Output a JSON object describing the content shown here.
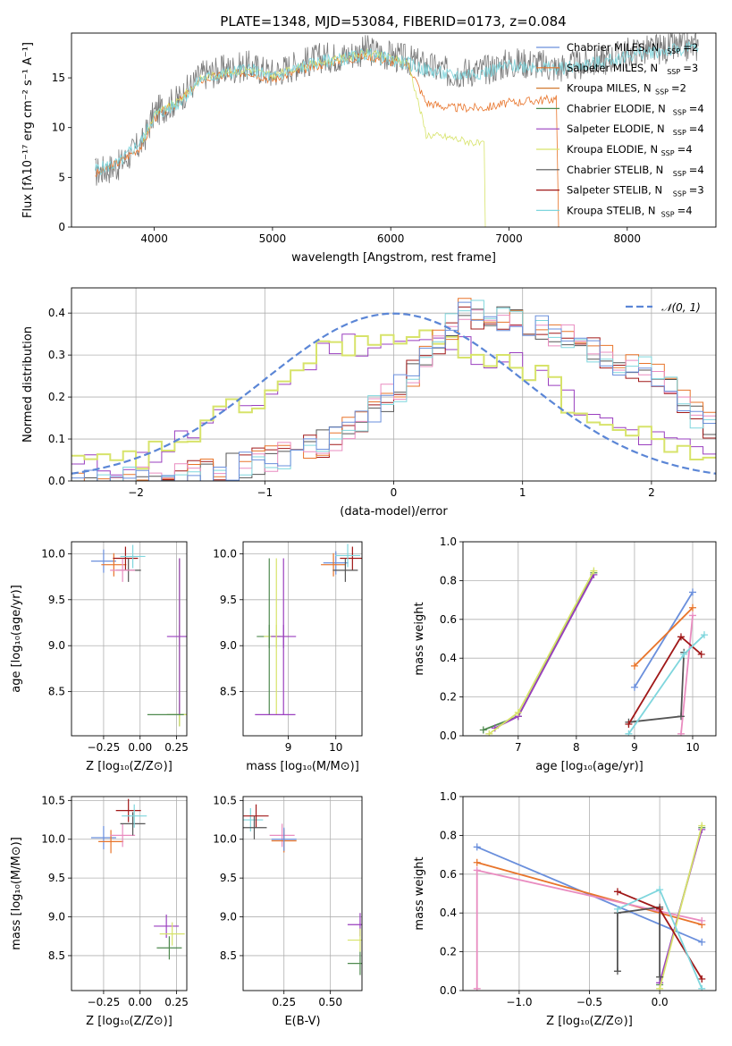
{
  "title": "PLATE=1348, MJD=53084, FIBERID=0173, z=0.084",
  "colors": {
    "Chabrier MILES": "#6a8fdc",
    "Salpeter MILES": "#e8742a",
    "Kroupa MILES": "#d27a30",
    "Chabrier ELODIE": "#4f8a4f",
    "Salpeter ELODIE": "#9a3fbf",
    "Kroupa ELODIE": "#d7e36a",
    "Chabrier STELIB": "#555555",
    "Salpeter STELIB": "#a01818",
    "Kroupa STELIB": "#7fd6dd",
    "extra": "#e98cc0",
    "gaussian": "#5b86d6"
  },
  "chart_data": [
    {
      "type": "line",
      "panel": "spectrum",
      "title": "PLATE=1348, MJD=53084, FIBERID=0173, z=0.084",
      "xlabel": "wavelength [Angstrom, rest frame]",
      "ylabel": "Flux [fλ10⁻¹⁷ erg cm⁻² s⁻¹ A⁻¹]",
      "xlim": [
        3300,
        8750
      ],
      "ylim": [
        0,
        19.5
      ],
      "xticks": [
        "4000",
        "5000",
        "6000",
        "7000",
        "8000"
      ],
      "yticks": [
        "0",
        "5",
        "10",
        "15"
      ],
      "legend": [
        {
          "label": "Chabrier MILES, N",
          "sub": "SSP",
          "tail": "=2"
        },
        {
          "label": "Salpeter MILES, N",
          "sub": "SSP",
          "tail": "=3"
        },
        {
          "label": "Kroupa MILES, N",
          "sub": "SSP",
          "tail": "=2"
        },
        {
          "label": "Chabrier ELODIE, N",
          "sub": "SSP",
          "tail": "=4"
        },
        {
          "label": "Salpeter ELODIE, N",
          "sub": "SSP",
          "tail": "=4"
        },
        {
          "label": "Kroupa ELODIE, N",
          "sub": "SSP",
          "tail": "=4"
        },
        {
          "label": "Chabrier STELIB, N",
          "sub": "SSP",
          "tail": "=4"
        },
        {
          "label": "Salpeter STELIB, N",
          "sub": "SSP",
          "tail": "=3"
        },
        {
          "label": "Kroupa STELIB, N",
          "sub": "SSP",
          "tail": "=4"
        }
      ],
      "legend_position": "upper right",
      "series": [
        {
          "name": "data",
          "x": [
            3500,
            3700,
            3900,
            4000,
            4200,
            4400,
            4600,
            4800,
            5000,
            5200,
            5400,
            5600,
            5800,
            6000,
            6150,
            6300,
            6500,
            6800,
            7000,
            7200,
            7400,
            7600,
            7800,
            8000,
            8200,
            8400,
            8600
          ],
          "y": [
            5.5,
            6.2,
            8.5,
            11.5,
            12.8,
            15.3,
            15.8,
            16.2,
            15.5,
            16.3,
            17.0,
            17.2,
            17.8,
            17.2,
            16.8,
            16.2,
            15.5,
            15.8,
            16.5,
            16.5,
            16.0,
            16.3,
            16.8,
            17.5,
            17.8,
            18.0,
            18.2
          ]
        },
        {
          "name": "MILES",
          "x": [
            3500,
            3700,
            3900,
            4000,
            4200,
            4400,
            4600,
            4800,
            5000,
            5200,
            5400,
            5600,
            5800,
            6000,
            6150,
            6300,
            6500,
            6800,
            7000,
            7200,
            7300,
            7400,
            7420
          ],
          "y": [
            5.3,
            6.5,
            8.2,
            11.0,
            12.5,
            14.8,
            15.3,
            15.6,
            14.8,
            15.6,
            16.3,
            16.8,
            17.2,
            16.6,
            16.3,
            12.5,
            12.0,
            12.0,
            12.5,
            12.7,
            12.8,
            12.9,
            0
          ]
        },
        {
          "name": "ELODIE",
          "x": [
            3900,
            4000,
            4200,
            4400,
            4600,
            4800,
            5000,
            5200,
            5400,
            5600,
            5800,
            6000,
            6150,
            6300,
            6500,
            6700,
            6800,
            6800
          ],
          "y": [
            8.5,
            11.3,
            12.6,
            15.0,
            15.5,
            15.9,
            15.2,
            16.0,
            16.5,
            17.0,
            17.5,
            17.0,
            16.5,
            9.3,
            9.0,
            8.5,
            8.2,
            0
          ]
        },
        {
          "name": "STELIB",
          "x": [
            3500,
            3700,
            3900,
            4000,
            4200,
            4400,
            4600,
            4800,
            5000,
            5200,
            5400,
            5600,
            5800,
            6000,
            6150,
            6300,
            6500,
            6800,
            7000,
            7200,
            7400,
            7600,
            7800,
            8000,
            8200,
            8400,
            8600
          ],
          "y": [
            5.8,
            6.4,
            8.8,
            11.2,
            12.4,
            14.9,
            15.4,
            15.9,
            15.0,
            15.9,
            16.6,
            16.9,
            17.4,
            16.8,
            16.4,
            15.8,
            15.2,
            15.6,
            16.2,
            16.2,
            15.9,
            16.2,
            16.6,
            17.2,
            17.6,
            17.8,
            18.0
          ]
        }
      ]
    },
    {
      "type": "line",
      "panel": "residuals",
      "xlabel": "(data-model)/error",
      "ylabel": "Normed distribution",
      "xlim": [
        -2.5,
        2.5
      ],
      "ylim": [
        0,
        0.46
      ],
      "xticks": [
        "−2",
        "−1",
        "0",
        "1",
        "2"
      ],
      "yticks": [
        "0.0",
        "0.1",
        "0.2",
        "0.3",
        "0.4"
      ],
      "legend": [
        {
          "label": "𝒩(0, 1)"
        }
      ],
      "legend_position": "upper right",
      "gaussian": {
        "mean": 0,
        "sigma": 1,
        "style": "dashed"
      },
      "series": [
        {
          "name": "broad",
          "x": [
            -2.5,
            -2.0,
            -1.5,
            -1.0,
            -0.5,
            0.0,
            0.5,
            1.0,
            1.5,
            2.0,
            2.5
          ],
          "y": [
            0.03,
            0.05,
            0.13,
            0.21,
            0.33,
            0.33,
            0.32,
            0.27,
            0.14,
            0.09,
            0.06
          ]
        },
        {
          "name": "shifted",
          "x": [
            -2.5,
            -2.0,
            -1.5,
            -1.0,
            -0.5,
            0.0,
            0.5,
            1.0,
            1.5,
            2.0,
            2.5
          ],
          "y": [
            0.0,
            0.0,
            0.02,
            0.05,
            0.1,
            0.22,
            0.4,
            0.38,
            0.31,
            0.25,
            0.1
          ]
        }
      ]
    },
    {
      "type": "scatter",
      "panel": "age-vs-Z",
      "xlabel": "Z [log₁₀(Z/Z⊙)]",
      "ylabel": "age  [log₁₀(age/yr)]",
      "xlim": [
        -0.47,
        0.32
      ],
      "ylim": [
        8.02,
        10.13
      ],
      "xticks": [
        "−0.25",
        "0.00",
        "0.25"
      ],
      "yticks": [
        "8.5",
        "9.0",
        "9.5",
        "10.0"
      ],
      "points": [
        {
          "x": -0.25,
          "y": 9.92,
          "c": "Chabrier MILES"
        },
        {
          "x": -0.18,
          "y": 9.88,
          "c": "Salpeter MILES"
        },
        {
          "x": -0.1,
          "y": 9.95,
          "c": "Salpeter STELIB"
        },
        {
          "x": -0.08,
          "y": 9.82,
          "c": "Chabrier STELIB"
        },
        {
          "x": -0.05,
          "y": 9.97,
          "c": "Kroupa STELIB"
        },
        {
          "x": -0.12,
          "y": 9.82,
          "c": "extra"
        },
        {
          "x": 0.27,
          "y": 8.25,
          "c": "Chabrier ELODIE"
        },
        {
          "x": 0.27,
          "y": 8.25,
          "c": "Kroupa ELODIE"
        },
        {
          "x": 0.27,
          "y": 9.1,
          "c": "Salpeter ELODIE"
        }
      ]
    },
    {
      "type": "scatter",
      "panel": "age-vs-mass",
      "xlabel": "mass [log₁₀(M/M⊙)]",
      "xlim": [
        8.05,
        10.55
      ],
      "ylim": [
        8.02,
        10.13
      ],
      "xticks": [
        "9",
        "10"
      ],
      "yticks": [
        "8.5",
        "9.0",
        "9.5",
        "10.0"
      ],
      "points": [
        {
          "x": 8.6,
          "y": 9.1,
          "c": "Chabrier ELODIE"
        },
        {
          "x": 8.75,
          "y": 9.1,
          "c": "Kroupa ELODIE"
        },
        {
          "x": 8.9,
          "y": 9.1,
          "c": "Salpeter ELODIE"
        },
        {
          "x": 10.0,
          "y": 9.9,
          "c": "Chabrier MILES"
        },
        {
          "x": 9.95,
          "y": 9.88,
          "c": "Salpeter MILES"
        },
        {
          "x": 10.35,
          "y": 9.95,
          "c": "Salpeter STELIB"
        },
        {
          "x": 10.2,
          "y": 9.82,
          "c": "Chabrier STELIB"
        },
        {
          "x": 10.25,
          "y": 9.98,
          "c": "Kroupa STELIB"
        }
      ]
    },
    {
      "type": "line",
      "panel": "mass-weight-vs-age",
      "xlabel": "age  [log₁₀(age/yr)]",
      "ylabel": "mass weight",
      "xlim": [
        6.05,
        10.4
      ],
      "ylim": [
        0,
        1.0
      ],
      "xticks": [
        "7",
        "8",
        "9",
        "10"
      ],
      "yticks": [
        "0.0",
        "0.2",
        "0.4",
        "0.6",
        "0.8",
        "1.0"
      ],
      "series": [
        {
          "c": "Chabrier MILES",
          "x": [
            9.0,
            10.0
          ],
          "y": [
            0.25,
            0.74
          ]
        },
        {
          "c": "Salpeter MILES",
          "x": [
            9.0,
            10.0
          ],
          "y": [
            0.36,
            0.66
          ]
        },
        {
          "c": "extra",
          "x": [
            9.8,
            10.0
          ],
          "y": [
            0.01,
            0.62
          ]
        },
        {
          "c": "Chabrier ELODIE",
          "x": [
            6.4,
            7.0,
            8.3
          ],
          "y": [
            0.03,
            0.1,
            0.84
          ]
        },
        {
          "c": "Salpeter ELODIE",
          "x": [
            6.6,
            7.0,
            8.3
          ],
          "y": [
            0.04,
            0.1,
            0.83
          ]
        },
        {
          "c": "Kroupa ELODIE",
          "x": [
            6.5,
            7.0,
            8.3
          ],
          "y": [
            0.01,
            0.12,
            0.85
          ]
        },
        {
          "c": "Chabrier STELIB",
          "x": [
            8.9,
            9.8,
            9.85
          ],
          "y": [
            0.07,
            0.1,
            0.43
          ]
        },
        {
          "c": "Salpeter STELIB",
          "x": [
            8.9,
            9.8,
            10.15
          ],
          "y": [
            0.06,
            0.51,
            0.42
          ]
        },
        {
          "c": "Kroupa STELIB",
          "x": [
            8.9,
            9.85,
            10.2
          ],
          "y": [
            0.01,
            0.42,
            0.52
          ]
        }
      ]
    },
    {
      "type": "scatter",
      "panel": "mass-vs-Z",
      "xlabel": "Z [log₁₀(Z/Z⊙)]",
      "ylabel": "mass [log₁₀(M/M⊙)]",
      "xlim": [
        -0.47,
        0.32
      ],
      "ylim": [
        8.05,
        10.55
      ],
      "xticks": [
        "−0.25",
        "0.00",
        "0.25"
      ],
      "yticks": [
        "8.5",
        "9.0",
        "9.5",
        "10.0",
        "10.5"
      ],
      "points": [
        {
          "x": -0.25,
          "y": 10.02,
          "c": "Chabrier MILES"
        },
        {
          "x": -0.2,
          "y": 9.97,
          "c": "Salpeter MILES"
        },
        {
          "x": -0.12,
          "y": 10.05,
          "c": "extra"
        },
        {
          "x": -0.08,
          "y": 10.37,
          "c": "Salpeter STELIB"
        },
        {
          "x": -0.05,
          "y": 10.2,
          "c": "Chabrier STELIB"
        },
        {
          "x": -0.04,
          "y": 10.3,
          "c": "Kroupa STELIB"
        },
        {
          "x": 0.18,
          "y": 8.88,
          "c": "Salpeter ELODIE"
        },
        {
          "x": 0.22,
          "y": 8.78,
          "c": "Kroupa ELODIE"
        },
        {
          "x": 0.2,
          "y": 8.6,
          "c": "Chabrier ELODIE"
        }
      ]
    },
    {
      "type": "scatter",
      "panel": "mass-vs-ebv",
      "xlabel": "E(B-V)",
      "xlim": [
        0.03,
        0.67
      ],
      "ylim": [
        8.05,
        10.55
      ],
      "xticks": [
        "0.25",
        "0.50"
      ],
      "yticks": [
        "8.5",
        "9.0",
        "9.5",
        "10.0",
        "10.5"
      ],
      "points": [
        {
          "x": 0.07,
          "y": 10.25,
          "c": "Kroupa STELIB"
        },
        {
          "x": 0.1,
          "y": 10.3,
          "c": "Salpeter STELIB"
        },
        {
          "x": 0.09,
          "y": 10.15,
          "c": "Chabrier STELIB"
        },
        {
          "x": 0.24,
          "y": 10.05,
          "c": "extra"
        },
        {
          "x": 0.25,
          "y": 9.98,
          "c": "Salpeter MILES"
        },
        {
          "x": 0.25,
          "y": 10.0,
          "c": "Chabrier MILES"
        },
        {
          "x": 0.66,
          "y": 8.9,
          "c": "Salpeter ELODIE"
        },
        {
          "x": 0.66,
          "y": 8.7,
          "c": "Kroupa ELODIE"
        },
        {
          "x": 0.66,
          "y": 8.4,
          "c": "Chabrier ELODIE"
        }
      ]
    },
    {
      "type": "line",
      "panel": "mass-weight-vs-Z",
      "xlabel": "Z [log₁₀(Z/Z⊙)]",
      "ylabel": "mass weight",
      "xlim": [
        -1.4,
        0.4
      ],
      "ylim": [
        0,
        1.0
      ],
      "xticks": [
        "−1.0",
        "−0.5",
        "0.0"
      ],
      "yticks": [
        "0.0",
        "0.2",
        "0.4",
        "0.6",
        "0.8",
        "1.0"
      ],
      "series": [
        {
          "c": "Chabrier MILES",
          "x": [
            -1.3,
            0.3
          ],
          "y": [
            0.74,
            0.25
          ]
        },
        {
          "c": "Salpeter MILES",
          "x": [
            -1.3,
            0.3
          ],
          "y": [
            0.66,
            0.34
          ]
        },
        {
          "c": "extra",
          "x": [
            -1.3,
            -1.3,
            0.3
          ],
          "y": [
            0.01,
            0.62,
            0.36
          ]
        },
        {
          "c": "Chabrier ELODIE",
          "x": [
            0.0,
            0.3
          ],
          "y": [
            0.03,
            0.84
          ]
        },
        {
          "c": "Salpeter ELODIE",
          "x": [
            0.0,
            0.3
          ],
          "y": [
            0.04,
            0.83
          ]
        },
        {
          "c": "Kroupa ELODIE",
          "x": [
            0.0,
            0.3
          ],
          "y": [
            0.01,
            0.85
          ]
        },
        {
          "c": "Chabrier STELIB",
          "x": [
            -0.3,
            -0.3,
            0.0,
            0.0
          ],
          "y": [
            0.1,
            0.4,
            0.43,
            0.07
          ]
        },
        {
          "c": "Salpeter STELIB",
          "x": [
            -0.3,
            0.0,
            0.3
          ],
          "y": [
            0.51,
            0.42,
            0.06
          ]
        },
        {
          "c": "Kroupa STELIB",
          "x": [
            -0.3,
            0.0,
            0.3
          ],
          "y": [
            0.42,
            0.52,
            0.01
          ]
        }
      ]
    }
  ]
}
